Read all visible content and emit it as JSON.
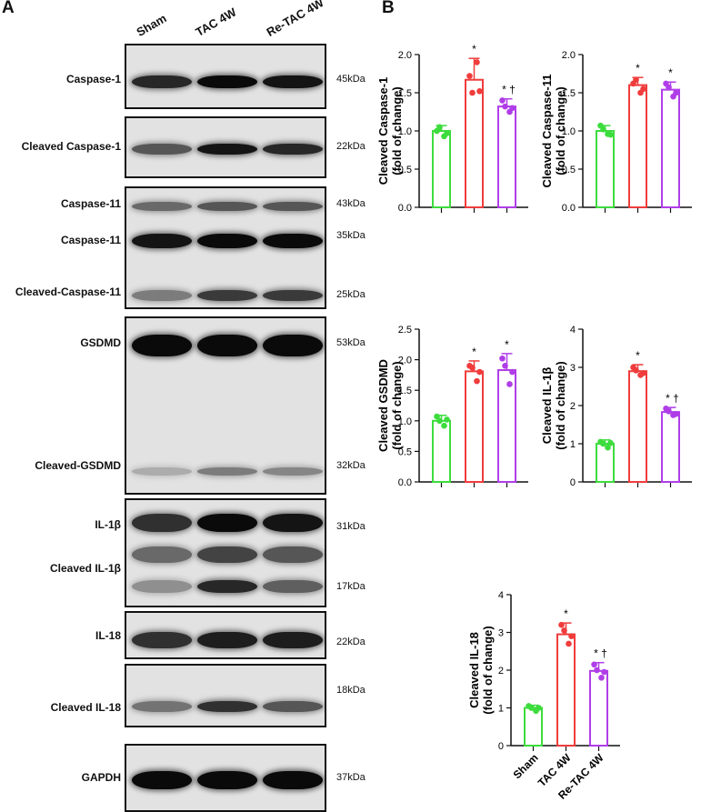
{
  "panelA": {
    "letter": "A",
    "lanes": [
      "Sham",
      "TAC 4W",
      "Re-TAC 4W"
    ],
    "blots": [
      {
        "labels": [
          "Caspase-1"
        ],
        "kda": [
          "45kDa"
        ]
      },
      {
        "labels": [
          "Cleaved Caspase-1"
        ],
        "kda": [
          "22kDa"
        ]
      },
      {
        "labels": [
          "Caspase-11",
          "Caspase-11",
          "Cleaved-Caspase-11"
        ],
        "kda": [
          "43kDa",
          "35kDa",
          "25kDa"
        ]
      },
      {
        "labels": [
          "GSDMD",
          "Cleaved-GSDMD"
        ],
        "kda": [
          "53kDa",
          "32kDa"
        ]
      },
      {
        "labels": [
          "IL-1β",
          "Cleaved IL-1β"
        ],
        "kda": [
          "31kDa",
          "17kDa"
        ]
      },
      {
        "labels": [
          "IL-18"
        ],
        "kda": [
          "22kDa"
        ]
      },
      {
        "labels": [
          "Cleaved IL-18"
        ],
        "kda": [
          "18kDa"
        ]
      },
      {
        "labels": [
          "GAPDH"
        ],
        "kda": [
          "37kDa"
        ]
      }
    ]
  },
  "panelB": {
    "letter": "B",
    "categories": [
      "Sham",
      "TAC 4W",
      "Re-TAC 4W"
    ],
    "colors": [
      "#3ddc3d",
      "#f03c3c",
      "#b03ee8"
    ]
  },
  "chart_data": [
    {
      "type": "bar",
      "ylabel_line1": "Cleaved Caspase-1",
      "ylabel_line2": "(fold of change)",
      "categories": [
        "Sham",
        "TAC 4W",
        "Re-TAC 4W"
      ],
      "values": [
        1.0,
        1.67,
        1.32
      ],
      "errors": [
        0.07,
        0.28,
        0.1
      ],
      "points": [
        [
          1.0,
          0.93,
          1.05,
          0.97
        ],
        [
          1.72,
          1.9,
          1.5,
          1.52
        ],
        [
          1.4,
          1.25,
          1.32,
          1.3
        ]
      ],
      "ylim": [
        0,
        2.0
      ],
      "yticks": [
        0.0,
        0.5,
        1.0,
        1.5,
        2.0
      ],
      "annotations": [
        "",
        "*",
        "* †"
      ]
    },
    {
      "type": "bar",
      "ylabel_line1": "Cleaved Caspase-11",
      "ylabel_line2": "(fold of change)",
      "categories": [
        "Sham",
        "TAC 4W",
        "Re-TAC 4W"
      ],
      "values": [
        1.0,
        1.6,
        1.54
      ],
      "errors": [
        0.07,
        0.1,
        0.1
      ],
      "points": [
        [
          1.07,
          0.96,
          1.02,
          0.95
        ],
        [
          1.62,
          1.5,
          1.67,
          1.55
        ],
        [
          1.62,
          1.45,
          1.57,
          1.5
        ]
      ],
      "ylim": [
        0,
        2.0
      ],
      "yticks": [
        0.0,
        0.5,
        1.0,
        1.5,
        2.0
      ],
      "annotations": [
        "",
        "*",
        "*"
      ]
    },
    {
      "type": "bar",
      "ylabel_line1": "Cleaved GSDMD",
      "ylabel_line2": "(fold of change)",
      "categories": [
        "Sham",
        "TAC 4W",
        "Re-TAC 4W"
      ],
      "values": [
        1.0,
        1.81,
        1.83
      ],
      "errors": [
        0.09,
        0.17,
        0.27
      ],
      "points": [
        [
          1.07,
          0.92,
          1.0,
          1.02
        ],
        [
          1.9,
          1.65,
          1.87,
          1.8
        ],
        [
          2.02,
          1.6,
          1.9,
          1.8
        ]
      ],
      "ylim": [
        0,
        2.5
      ],
      "yticks": [
        0.0,
        0.5,
        1.0,
        1.5,
        2.0,
        2.5
      ],
      "annotations": [
        "",
        "*",
        "*"
      ]
    },
    {
      "type": "bar",
      "ylabel_line1": "Cleaved IL-1β",
      "ylabel_line2": "(fold of change)",
      "categories": [
        "Sham",
        "TAC 4W",
        "Re-TAC 4W"
      ],
      "values": [
        1.0,
        2.9,
        1.83
      ],
      "errors": [
        0.1,
        0.17,
        0.12
      ],
      "points": [
        [
          1.05,
          0.9,
          1.0,
          1.02
        ],
        [
          3.0,
          2.8,
          2.92,
          2.85
        ],
        [
          1.92,
          1.75,
          1.85,
          1.78
        ]
      ],
      "ylim": [
        0,
        4
      ],
      "yticks": [
        0,
        1,
        2,
        3,
        4
      ],
      "annotations": [
        "",
        "*",
        "* †"
      ]
    },
    {
      "type": "bar",
      "ylabel_line1": "Cleaved IL-18",
      "ylabel_line2": "(fold of change)",
      "categories": [
        "Sham",
        "TAC 4W",
        "Re-TAC 4W"
      ],
      "values": [
        1.0,
        2.95,
        1.98
      ],
      "errors": [
        0.07,
        0.3,
        0.22
      ],
      "points": [
        [
          1.05,
          0.92,
          1.0,
          1.0
        ],
        [
          3.2,
          2.7,
          3.05,
          2.9
        ],
        [
          2.15,
          1.8,
          2.0,
          1.95
        ]
      ],
      "ylim": [
        0,
        4
      ],
      "yticks": [
        0,
        1,
        2,
        3,
        4
      ],
      "annotations": [
        "",
        "*",
        "* †"
      ]
    }
  ]
}
